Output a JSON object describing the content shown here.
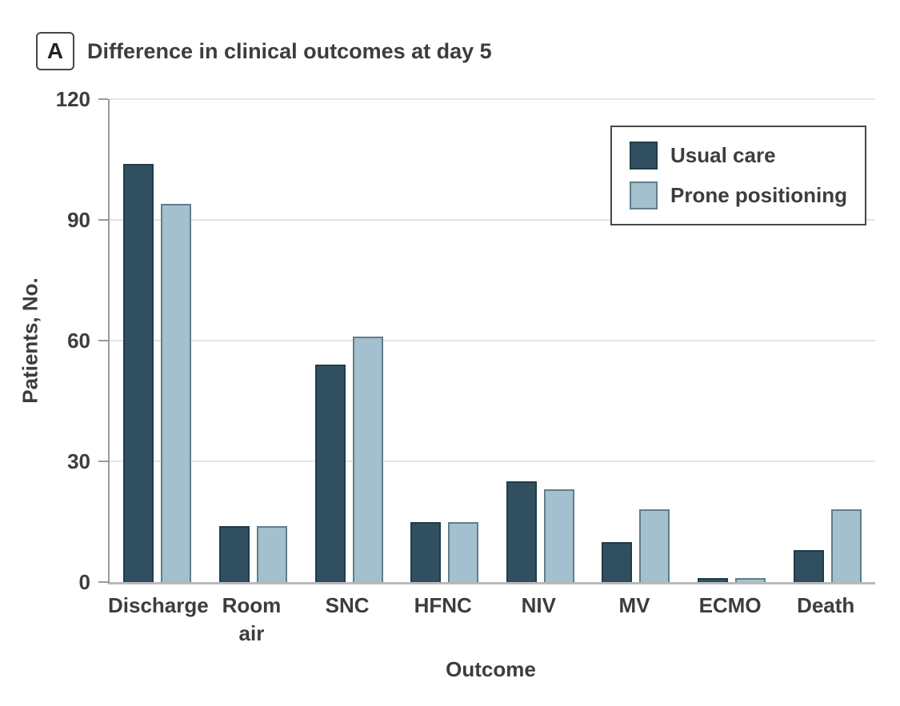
{
  "panel": {
    "letter": "A",
    "title": "Difference in clinical outcomes at day 5"
  },
  "chart_data": {
    "type": "bar",
    "title": "Difference in clinical outcomes at day 5",
    "categories": [
      "Discharge",
      "Room air",
      "SNC",
      "HFNC",
      "NIV",
      "MV",
      "ECMO",
      "Death"
    ],
    "category_display": [
      "Discharge",
      "Room\nair",
      "SNC",
      "HFNC",
      "NIV",
      "MV",
      "ECMO",
      "Death"
    ],
    "series": [
      {
        "name": "Usual care",
        "color": "#31505F",
        "border_color": "#203C49",
        "values": [
          104,
          14,
          54,
          15,
          25,
          10,
          1,
          8
        ]
      },
      {
        "name": "Prone positioning",
        "color": "#A4BFCE",
        "border_color": "#607E8D",
        "values": [
          94,
          14,
          61,
          15,
          23,
          18,
          1,
          18
        ]
      }
    ],
    "xlabel": "Outcome",
    "ylabel": "Patients, No.",
    "ylim": [
      0,
      120
    ],
    "yticks": [
      0,
      30,
      60,
      90,
      120
    ],
    "grid": true,
    "legend_position": "top-right"
  }
}
